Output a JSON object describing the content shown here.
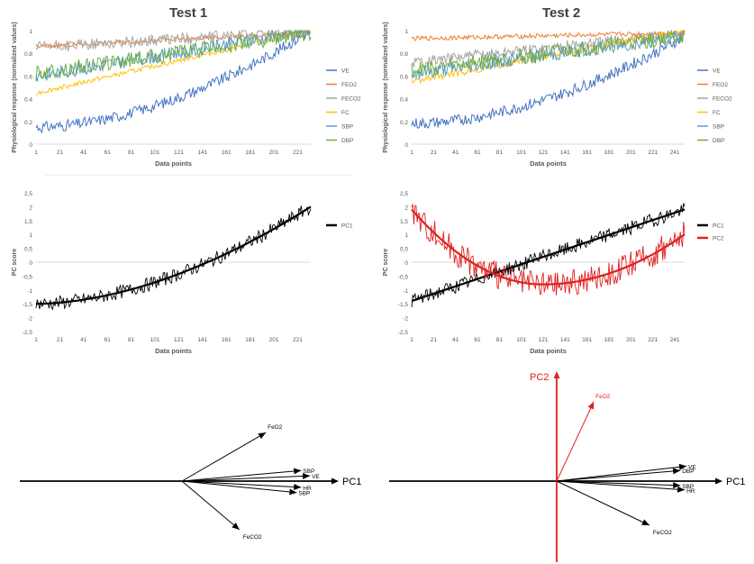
{
  "titles": {
    "test1": "Test 1",
    "test2": "Test 2"
  },
  "colors": {
    "VE": "#4472c4",
    "FEO2": "#ed7d31",
    "FECO2": "#a5a5a5",
    "FC": "#ffc000",
    "SBP": "#5b9bd5",
    "DBP": "#70ad47",
    "PC1": "#000000",
    "PC2": "#e02020",
    "axis": "#d9d9d9",
    "tick": "#595959"
  },
  "chart_data": [
    {
      "id": "t1-physio",
      "type": "line",
      "xlabel": "Data points",
      "ylabel": "Physiological response (normalized values)",
      "ylim": [
        0,
        1
      ],
      "yticks": [
        "0",
        "0.2",
        "0.4",
        "0.6",
        "0.8",
        "1"
      ],
      "xticks": [
        "1",
        "21",
        "41",
        "61",
        "81",
        "101",
        "121",
        "141",
        "161",
        "181",
        "201",
        "221"
      ],
      "xrange": [
        1,
        232
      ],
      "series": [
        {
          "name": "VE",
          "start": 0.15,
          "end": 1.0,
          "shape": "convex",
          "noise": 0.05
        },
        {
          "name": "FEO2",
          "start": 0.86,
          "end": 0.98,
          "shape": "linear",
          "noise": 0.02
        },
        {
          "name": "FECO2",
          "start": 0.85,
          "end": 1.0,
          "shape": "linear",
          "noise": 0.05
        },
        {
          "name": "FC",
          "start": 0.45,
          "end": 1.0,
          "shape": "linear",
          "noise": 0.02
        },
        {
          "name": "SBP",
          "start": 0.6,
          "end": 1.0,
          "shape": "linear",
          "noise": 0.06
        },
        {
          "name": "DBP",
          "start": 0.62,
          "end": 0.98,
          "shape": "linear",
          "noise": 0.07
        }
      ]
    },
    {
      "id": "t2-physio",
      "type": "line",
      "xlabel": "Data points",
      "ylabel": "Physiological response (normalized values)",
      "ylim": [
        0,
        1
      ],
      "yticks": [
        "0",
        "0.2",
        "0.4",
        "0.6",
        "0.8",
        "1"
      ],
      "xticks": [
        "1",
        "21",
        "41",
        "61",
        "81",
        "101",
        "121",
        "141",
        "161",
        "181",
        "201",
        "221",
        "241"
      ],
      "xrange": [
        1,
        250
      ],
      "series": [
        {
          "name": "VE",
          "start": 0.18,
          "end": 0.95,
          "shape": "convex",
          "noise": 0.05
        },
        {
          "name": "FEO2",
          "start": 0.93,
          "end": 0.98,
          "shape": "linear",
          "noise": 0.02
        },
        {
          "name": "FECO2",
          "start": 0.72,
          "end": 0.98,
          "shape": "linear",
          "noise": 0.05
        },
        {
          "name": "FC",
          "start": 0.55,
          "end": 1.0,
          "shape": "linear",
          "noise": 0.03
        },
        {
          "name": "SBP",
          "start": 0.62,
          "end": 0.95,
          "shape": "linear",
          "noise": 0.06
        },
        {
          "name": "DBP",
          "start": 0.65,
          "end": 0.95,
          "shape": "linear",
          "noise": 0.07
        }
      ]
    },
    {
      "id": "t1-pc",
      "type": "line",
      "xlabel": "Data points",
      "ylabel": "PC score",
      "ylim": [
        -2.5,
        2.5
      ],
      "yticks": [
        "-2,5",
        "-2",
        "-1,5",
        "-1",
        "-0,5",
        "0",
        "0,5",
        "1",
        "1,5",
        "2",
        "2,5"
      ],
      "xticks": [
        "1",
        "21",
        "41",
        "61",
        "81",
        "101",
        "121",
        "141",
        "161",
        "181",
        "201",
        "221"
      ],
      "xrange": [
        1,
        232
      ],
      "series": [
        {
          "name": "PC1",
          "start": -1.5,
          "end": 2.0,
          "shape": "convex",
          "noise": 0.25,
          "trend": true
        }
      ]
    },
    {
      "id": "t2-pc",
      "type": "line",
      "xlabel": "Data points",
      "ylabel": "PC score",
      "ylim": [
        -2.5,
        2.5
      ],
      "yticks": [
        "-2,5",
        "-2",
        "-1,5",
        "-1",
        "-0,5",
        "0",
        "0,5",
        "1",
        "1,5",
        "2",
        "2,5"
      ],
      "xticks": [
        "1",
        "21",
        "41",
        "61",
        "81",
        "101",
        "121",
        "141",
        "161",
        "181",
        "201",
        "221",
        "241"
      ],
      "xrange": [
        1,
        250
      ],
      "series": [
        {
          "name": "PC1",
          "start": -1.4,
          "end": 1.9,
          "shape": "linear",
          "noise": 0.25,
          "trend": true
        },
        {
          "name": "PC2",
          "start": 1.9,
          "end": 1.0,
          "shape": "u",
          "min": -0.8,
          "noise": 0.5,
          "trend": true
        }
      ]
    },
    {
      "id": "t1-biplot",
      "type": "diagram",
      "axes": [
        "PC1"
      ],
      "vectors": [
        {
          "label": "FeO2",
          "dx": 0.95,
          "dy": 0.55
        },
        {
          "label": "SBP",
          "dx": 1.35,
          "dy": 0.12
        },
        {
          "label": "VE",
          "dx": 1.45,
          "dy": 0.06
        },
        {
          "label": "HR",
          "dx": 1.35,
          "dy": -0.07
        },
        {
          "label": "SBP",
          "dx": 1.3,
          "dy": -0.13
        },
        {
          "label": "FeCO2",
          "dx": 0.65,
          "dy": -0.55
        }
      ]
    },
    {
      "id": "t2-biplot",
      "type": "diagram",
      "axes": [
        "PC1",
        "PC2"
      ],
      "vectors": [
        {
          "label": "FeO2",
          "dx": 0.42,
          "dy": 0.9,
          "color": "PC2"
        },
        {
          "label": "VE",
          "dx": 1.47,
          "dy": 0.17
        },
        {
          "label": "DBP",
          "dx": 1.4,
          "dy": 0.12
        },
        {
          "label": "SBP",
          "dx": 1.4,
          "dy": -0.05
        },
        {
          "label": "HR",
          "dx": 1.45,
          "dy": -0.1
        },
        {
          "label": "FeCO2",
          "dx": 1.05,
          "dy": -0.5
        }
      ]
    }
  ]
}
